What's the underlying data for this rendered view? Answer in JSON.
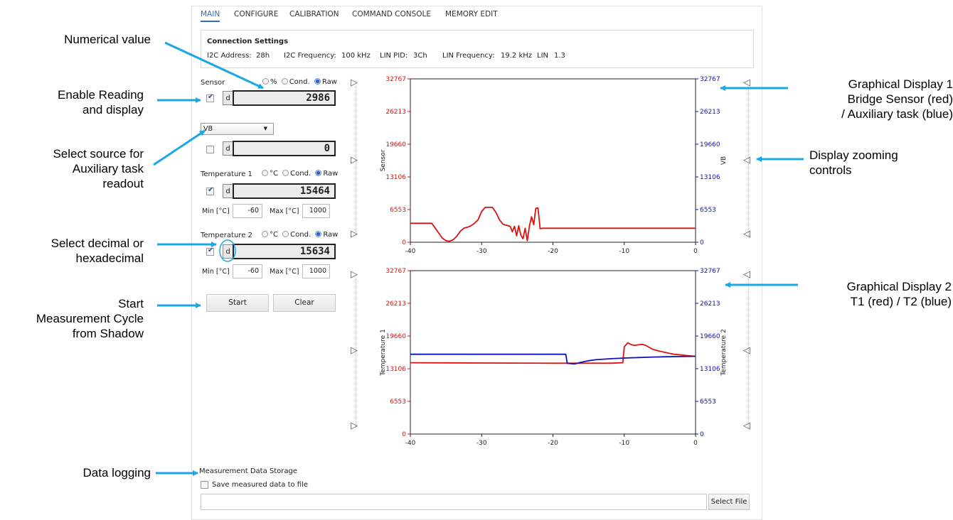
{
  "tabs": [
    "MAIN",
    "CONFIGURE",
    "CALIBRATION",
    "COMMAND CONSOLE",
    "MEMORY EDIT"
  ],
  "connection": {
    "title": "Connection Settings",
    "i2c_address_label": "I2C Address:",
    "i2c_address": "28h",
    "i2c_freq_label": "I2C Frequency:",
    "i2c_freq": "100 kHz",
    "lin_pid_label": "LIN PID:",
    "lin_pid": "3Ch",
    "lin_freq_label": "LIN Frequency:",
    "lin_freq": "19.2 kHz",
    "lin_label": "LIN",
    "lin_version": "1.3"
  },
  "sensor": {
    "label": "Sensor",
    "opt_percent": "%",
    "opt_cond": "Cond.",
    "opt_raw": "Raw",
    "selected": "Raw",
    "enabled": true,
    "base": "d",
    "value": "2986"
  },
  "aux": {
    "select_value": "VB",
    "enabled": false,
    "base": "d",
    "value": "0"
  },
  "temp1": {
    "label": "Temperature 1",
    "opt_unit": "°C",
    "opt_cond": "Cond.",
    "opt_raw": "Raw",
    "selected": "Raw",
    "enabled": true,
    "base": "d",
    "value": "15464",
    "min_label": "Min [°C]",
    "min": "-60",
    "max_label": "Max [°C]",
    "max": "1000"
  },
  "temp2": {
    "label": "Temperature 2",
    "opt_unit": "°C",
    "opt_cond": "Cond.",
    "opt_raw": "Raw",
    "selected": "Raw",
    "enabled": true,
    "base": "d",
    "value": "15634",
    "min_label": "Min [°C]",
    "min": "-60",
    "max_label": "Max [°C]",
    "max": "1000"
  },
  "buttons": {
    "start": "Start",
    "clear": "Clear",
    "select_file": "Select File"
  },
  "storage": {
    "title": "Measurement Data Storage",
    "save_label": "Save measured data to file",
    "save_checked": false,
    "file_path": ""
  },
  "annotations": {
    "numerical_value": "Numerical value",
    "enable_reading": [
      "Enable Reading",
      "and display"
    ],
    "select_source": [
      "Select source for",
      "Auxiliary task",
      "readout"
    ],
    "select_decimal": [
      "Select decimal or",
      "hexadecimal"
    ],
    "start_cycle": [
      "Start",
      "Measurement Cycle",
      "from Shadow"
    ],
    "data_logging": "Data logging",
    "graph1": [
      "Graphical Display 1",
      "Bridge Sensor (red)",
      "/ Auxiliary task (blue)"
    ],
    "zoom": [
      "Display zooming",
      "controls"
    ],
    "graph2": [
      "Graphical Display 2",
      "T1 (red) / T2 (blue)"
    ]
  },
  "colors": {
    "red": "#dd1111",
    "blue": "#1111bb",
    "annotation_arrow": "#1aa7e8",
    "tab_active": "#3a6bc4"
  },
  "chart_data": [
    {
      "type": "line",
      "xlim": [
        -40,
        0
      ],
      "xticks": [
        -40,
        -30,
        -20,
        -10,
        0
      ],
      "ylim": [
        0,
        32767
      ],
      "yticks_left": [
        "0",
        "6553",
        "13106",
        "19660",
        "26213",
        "32767"
      ],
      "yticks_right": [
        "0",
        "6553",
        "13106",
        "19660",
        "26213",
        "32767"
      ],
      "ylabel_left": "Sensor",
      "ylabel_right": "VB",
      "series": [
        {
          "color": "#dd1111",
          "x": [
            -40,
            -37,
            -36,
            -35.5,
            -35,
            -34.5,
            -34,
            -33.5,
            -33,
            -32.5,
            -32,
            -31.5,
            -31,
            -30.5,
            -30,
            -29.5,
            -29,
            -28.5,
            -28,
            -27.5,
            -27,
            -26.5,
            -26,
            -25.7,
            -25.4,
            -25.1,
            -24.8,
            -24.5,
            -24.2,
            -23.9,
            -23.6,
            -23.3,
            -23,
            -22.7,
            -22.4,
            -22.1,
            -21.8,
            -21.5,
            -21,
            -15,
            -10,
            0
          ],
          "y": [
            3800,
            3800,
            1800,
            800,
            300,
            200,
            500,
            1200,
            2200,
            2800,
            3000,
            3300,
            3800,
            4500,
            6200,
            7000,
            7000,
            7000,
            6000,
            4500,
            3600,
            3400,
            3200,
            2100,
            3200,
            1300,
            3300,
            1400,
            700,
            2800,
            300,
            3200,
            5100,
            3500,
            6800,
            6900,
            2700,
            2800,
            2800,
            2800,
            2800,
            2800
          ]
        }
      ]
    },
    {
      "type": "line",
      "xlim": [
        -40,
        0
      ],
      "xticks": [
        -40,
        -30,
        -20,
        -10,
        0
      ],
      "ylim": [
        0,
        32767
      ],
      "yticks_left": [
        "0",
        "6553",
        "13106",
        "19660",
        "26213",
        "32767"
      ],
      "yticks_right": [
        "0",
        "6553",
        "13106",
        "19660",
        "26213",
        "32767"
      ],
      "ylabel_left": "Temperature 1",
      "ylabel_right": "Temperature 2",
      "series": [
        {
          "color": "#dd1111",
          "x": [
            -40,
            -30,
            -20,
            -17,
            -12,
            -10.2,
            -10,
            -9.5,
            -9,
            -8.5,
            -8,
            -7.5,
            -7,
            -6,
            -5,
            -4,
            -3,
            -2,
            -1,
            0
          ],
          "y": [
            14300,
            14250,
            14200,
            14200,
            14200,
            14300,
            17500,
            18300,
            17900,
            17800,
            17900,
            18000,
            17800,
            17000,
            16600,
            16300,
            16000,
            15850,
            15700,
            15600
          ]
        },
        {
          "color": "#1111bb",
          "x": [
            -40,
            -30,
            -20,
            -18.2,
            -18,
            -17,
            -16,
            -15,
            -14,
            -12,
            -10,
            -8,
            -6,
            -4,
            -2,
            0
          ],
          "y": [
            16000,
            16000,
            16000,
            16000,
            14200,
            14050,
            14400,
            14700,
            14900,
            15100,
            15250,
            15350,
            15450,
            15500,
            15550,
            15600
          ]
        }
      ]
    }
  ]
}
